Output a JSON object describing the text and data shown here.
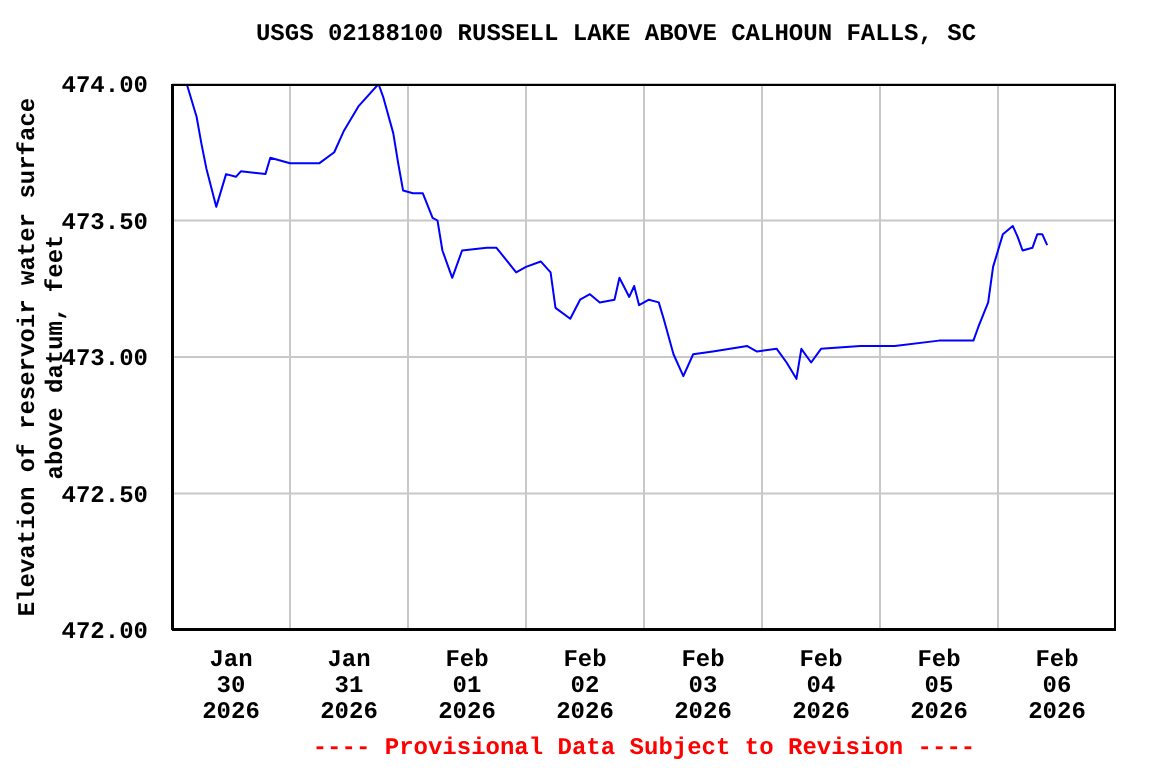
{
  "chart_data": {
    "type": "line",
    "title": "USGS 02188100 RUSSELL LAKE ABOVE CALHOUN FALLS, SC",
    "ylabel": "Elevation of reservoir water surface\nabove datum, feet",
    "annotations": [
      "---- Provisional Data Subject to Revision ----"
    ],
    "x": [
      "2026-01-30T00:00",
      "2026-01-30T03:00",
      "2026-01-30T05:00",
      "2026-01-30T06:00",
      "2026-01-30T07:00",
      "2026-01-30T08:00",
      "2026-01-30T09:00",
      "2026-01-30T11:00",
      "2026-01-30T13:00",
      "2026-01-30T14:00",
      "2026-01-30T19:00",
      "2026-01-30T20:00",
      "2026-01-31T00:00",
      "2026-01-31T06:00",
      "2026-01-31T09:00",
      "2026-01-31T11:00",
      "2026-01-31T14:00",
      "2026-01-31T18:00",
      "2026-01-31T19:00",
      "2026-01-31T21:00",
      "2026-01-31T22:00",
      "2026-01-31T23:00",
      "2026-02-01T01:00",
      "2026-02-01T03:00",
      "2026-02-01T05:00",
      "2026-02-01T06:00",
      "2026-02-01T07:00",
      "2026-02-01T09:00",
      "2026-02-01T11:00",
      "2026-02-01T16:00",
      "2026-02-01T18:00",
      "2026-02-01T22:00",
      "2026-02-02T00:00",
      "2026-02-02T03:00",
      "2026-02-02T05:00",
      "2026-02-02T06:00",
      "2026-02-02T09:00",
      "2026-02-02T11:00",
      "2026-02-02T13:00",
      "2026-02-02T15:00",
      "2026-02-02T18:00",
      "2026-02-02T19:00",
      "2026-02-02T21:00",
      "2026-02-02T22:00",
      "2026-02-02T23:00",
      "2026-02-03T01:00",
      "2026-02-03T03:00",
      "2026-02-03T04:00",
      "2026-02-03T06:00",
      "2026-02-03T08:00",
      "2026-02-03T10:00",
      "2026-02-03T14:00",
      "2026-02-03T21:00",
      "2026-02-03T23:00",
      "2026-02-04T03:00",
      "2026-02-04T05:00",
      "2026-02-04T07:00",
      "2026-02-04T08:00",
      "2026-02-04T10:00",
      "2026-02-04T12:00",
      "2026-02-04T20:00",
      "2026-02-05T03:00",
      "2026-02-05T12:00",
      "2026-02-05T19:00",
      "2026-02-05T20:00",
      "2026-02-05T22:00",
      "2026-02-05T23:00",
      "2026-02-06T00:00",
      "2026-02-06T01:00",
      "2026-02-06T03:00",
      "2026-02-06T04:00",
      "2026-02-06T05:00",
      "2026-02-06T07:00",
      "2026-02-06T08:00",
      "2026-02-06T09:00",
      "2026-02-06T10:00"
    ],
    "series": [
      {
        "color": "#0000ff",
        "values": [
          474.0,
          474.0,
          473.88,
          473.78,
          473.69,
          473.62,
          473.55,
          473.67,
          473.66,
          473.68,
          473.67,
          473.73,
          473.71,
          473.71,
          473.75,
          473.83,
          473.92,
          474.0,
          473.95,
          473.82,
          473.71,
          473.61,
          473.6,
          473.6,
          473.51,
          473.5,
          473.39,
          473.29,
          473.39,
          473.4,
          473.4,
          473.31,
          473.33,
          473.35,
          473.31,
          473.18,
          473.14,
          473.21,
          473.23,
          473.2,
          473.21,
          473.29,
          473.22,
          473.26,
          473.19,
          473.21,
          473.2,
          473.14,
          473.01,
          472.93,
          473.01,
          473.02,
          473.04,
          473.02,
          473.03,
          472.98,
          472.92,
          473.03,
          472.98,
          473.03,
          473.04,
          473.04,
          473.06,
          473.06,
          473.11,
          473.2,
          473.33,
          473.39,
          473.45,
          473.48,
          473.44,
          473.39,
          473.4,
          473.45,
          473.45,
          473.41
        ]
      }
    ],
    "xlim": [
      "2026-01-30T00:00",
      "2026-02-07T00:00"
    ],
    "xticks": [
      {
        "value": "2026-01-30T12:00",
        "label": "Jan\n30\n2026"
      },
      {
        "value": "2026-01-31T00:00",
        "label": null
      },
      {
        "value": "2026-01-31T12:00",
        "label": "Jan\n31\n2026"
      },
      {
        "value": "2026-02-01T00:00",
        "label": null
      },
      {
        "value": "2026-02-01T12:00",
        "label": "Feb\n01\n2026"
      },
      {
        "value": "2026-02-02T00:00",
        "label": null
      },
      {
        "value": "2026-02-02T12:00",
        "label": "Feb\n02\n2026"
      },
      {
        "value": "2026-02-03T00:00",
        "label": null
      },
      {
        "value": "2026-02-03T12:00",
        "label": "Feb\n03\n2026"
      },
      {
        "value": "2026-02-04T00:00",
        "label": null
      },
      {
        "value": "2026-02-04T12:00",
        "label": "Feb\n04\n2026"
      },
      {
        "value": "2026-02-05T00:00",
        "label": null
      },
      {
        "value": "2026-02-05T12:00",
        "label": "Feb\n05\n2026"
      },
      {
        "value": "2026-02-06T00:00",
        "label": null
      },
      {
        "value": "2026-02-06T12:00",
        "label": "Feb\n06\n2026"
      }
    ],
    "ylim": [
      472,
      474
    ],
    "yticks": [
      {
        "value": 472,
        "label": "472.00"
      },
      {
        "value": 472.5,
        "label": "472.50"
      },
      {
        "value": 473,
        "label": "473.00"
      },
      {
        "value": 473.5,
        "label": "473.50"
      },
      {
        "value": 474,
        "label": "474.00"
      }
    ],
    "grid": true,
    "legend": false,
    "marker": "none",
    "line_style": "solid"
  }
}
